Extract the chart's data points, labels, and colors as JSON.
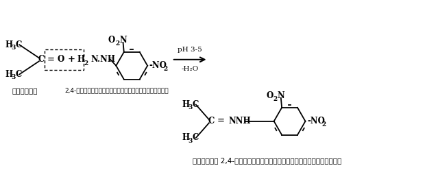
{
  "bg_color": "#ffffff",
  "fig_width": 6.39,
  "fig_height": 2.77,
  "dpi": 100,
  "acetone_label": "ऐसीटोन",
  "dnph_label": "2,4-डाइनाइट्रोफेनिलहाइड्राजीन",
  "product_label": "ऐसीटोन 2,4-डाइनाइट्रोफेनिलहाइड्राजोन",
  "arrow_top": "pH 3-5",
  "arrow_bot": "-H₂O"
}
